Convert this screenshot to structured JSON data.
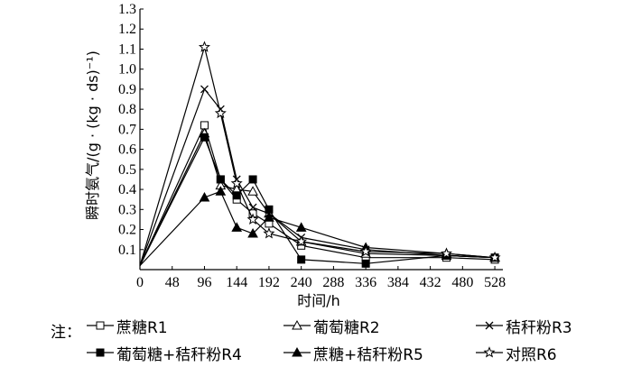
{
  "chart_data": {
    "type": "line",
    "xlabel": "时间/h",
    "ylabel": "瞬时氨气/(g · (kg · ds)⁻¹)",
    "xlim": [
      0,
      540
    ],
    "ylim": [
      0,
      1.3
    ],
    "xticks": [
      0,
      48,
      96,
      144,
      192,
      240,
      288,
      336,
      384,
      432,
      480,
      528
    ],
    "yticks": [
      0.1,
      0.2,
      0.3,
      0.4,
      0.5,
      0.6,
      0.7,
      0.8,
      0.9,
      1.0,
      1.1,
      1.2,
      1.3
    ],
    "ytick_labels": [
      "0.1",
      "0.2",
      "0.3",
      "0.4",
      "0.5",
      "0.6",
      "0.7",
      "0.8",
      "0.9",
      "1.0",
      "1.1",
      "1.2",
      "1.3"
    ],
    "grid": false,
    "legend_prefix": "注：",
    "legend_position": "bottom",
    "series": [
      {
        "name": "蔗糖R1",
        "marker": "square-open",
        "x": [
          0,
          96,
          120,
          144,
          168,
          192,
          240,
          336,
          456,
          528
        ],
        "y": [
          0.02,
          0.72,
          0.45,
          0.35,
          0.28,
          0.23,
          0.12,
          0.06,
          0.06,
          0.05
        ]
      },
      {
        "name": "葡萄糖R2",
        "marker": "triangle-open",
        "x": [
          0,
          96,
          120,
          144,
          168,
          192,
          240,
          336,
          456,
          528
        ],
        "y": [
          0.02,
          0.68,
          0.42,
          0.4,
          0.39,
          0.28,
          0.14,
          0.08,
          0.07,
          0.06
        ]
      },
      {
        "name": "秸秆粉R3",
        "marker": "x",
        "x": [
          0,
          96,
          120,
          144,
          168,
          192,
          240,
          336,
          456,
          528
        ],
        "y": [
          0.02,
          0.9,
          0.8,
          0.45,
          0.31,
          0.28,
          0.16,
          0.1,
          0.07,
          0.06
        ]
      },
      {
        "name": "葡萄糖+秸秆粉R4",
        "marker": "square-filled",
        "x": [
          0,
          96,
          120,
          144,
          168,
          192,
          240,
          336,
          456,
          528
        ],
        "y": [
          0.02,
          0.66,
          0.45,
          0.37,
          0.45,
          0.3,
          0.05,
          0.03,
          0.07,
          0.06
        ]
      },
      {
        "name": "蔗糖+秸秆粉R5",
        "marker": "triangle-filled",
        "x": [
          0,
          96,
          120,
          144,
          168,
          192,
          240,
          336,
          456,
          528
        ],
        "y": [
          0.02,
          0.36,
          0.39,
          0.21,
          0.18,
          0.26,
          0.21,
          0.11,
          0.08,
          0.06
        ]
      },
      {
        "name": "对照R6",
        "marker": "star-open",
        "x": [
          0,
          96,
          120,
          144,
          168,
          192,
          240,
          336,
          456,
          528
        ],
        "y": [
          0.02,
          1.11,
          0.78,
          0.43,
          0.25,
          0.18,
          0.14,
          0.09,
          0.08,
          0.06
        ]
      }
    ]
  }
}
